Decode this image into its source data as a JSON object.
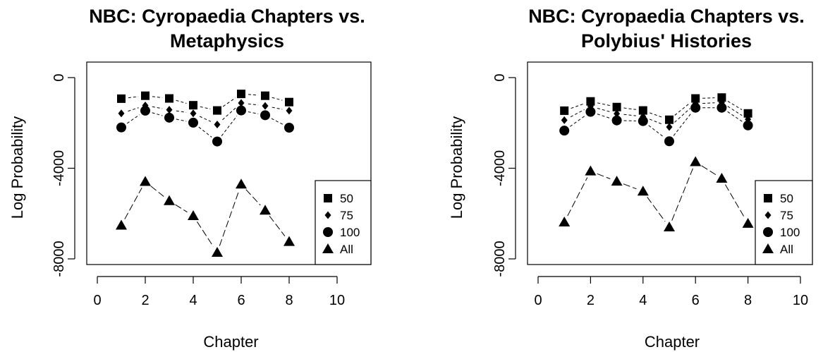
{
  "chart_data": [
    {
      "type": "scatter",
      "title_line1": "NBC: Cyropaedia Chapters vs.",
      "title_line2": "Metaphysics",
      "xlabel": "Chapter",
      "ylabel": "Log Probability",
      "xlim": [
        0,
        11
      ],
      "ylim": [
        -8000,
        0
      ],
      "xticks": [
        "0",
        "2",
        "4",
        "6",
        "8",
        "10"
      ],
      "yticks": [
        "0",
        "-4000",
        "-8000"
      ],
      "x": [
        1,
        2,
        3,
        4,
        5,
        6,
        7,
        8
      ],
      "legend_position": "bottom-right",
      "series": [
        {
          "name": "50",
          "marker": "square",
          "values": [
            -930,
            -800,
            -920,
            -1220,
            -1450,
            -720,
            -800,
            -1080
          ]
        },
        {
          "name": "75",
          "marker": "diamond",
          "values": [
            -1580,
            -1230,
            -1420,
            -1580,
            -2070,
            -1120,
            -1250,
            -1460
          ]
        },
        {
          "name": "100",
          "marker": "circle",
          "values": [
            -2200,
            -1460,
            -1770,
            -1990,
            -2820,
            -1450,
            -1660,
            -2210
          ]
        },
        {
          "name": "All",
          "marker": "triangle",
          "values": [
            -6520,
            -4590,
            -5440,
            -6100,
            -7720,
            -4710,
            -5860,
            -7240
          ]
        }
      ]
    },
    {
      "type": "scatter",
      "title_line1": "NBC: Cyropaedia Chapters vs.",
      "title_line2": "Polybius' Histories",
      "xlabel": "Chapter",
      "ylabel": "Log Probability",
      "xlim": [
        0,
        10.6
      ],
      "ylim": [
        -8000,
        0
      ],
      "xticks": [
        "0",
        "2",
        "4",
        "6",
        "8",
        "10"
      ],
      "yticks": [
        "0",
        "-4000",
        "-8000"
      ],
      "x": [
        1,
        2,
        3,
        4,
        5,
        6,
        7,
        8
      ],
      "legend_position": "bottom-right",
      "series": [
        {
          "name": "50",
          "marker": "square",
          "values": [
            -1460,
            -1050,
            -1300,
            -1450,
            -1860,
            -920,
            -880,
            -1580
          ]
        },
        {
          "name": "75",
          "marker": "diamond",
          "values": [
            -1880,
            -1270,
            -1590,
            -1720,
            -2180,
            -1150,
            -1100,
            -1840
          ]
        },
        {
          "name": "100",
          "marker": "circle",
          "values": [
            -2340,
            -1510,
            -1890,
            -1920,
            -2810,
            -1330,
            -1330,
            -2110
          ]
        },
        {
          "name": "All",
          "marker": "triangle",
          "values": [
            -6380,
            -4130,
            -4580,
            -5020,
            -6600,
            -3720,
            -4450,
            -6440
          ]
        }
      ]
    }
  ]
}
